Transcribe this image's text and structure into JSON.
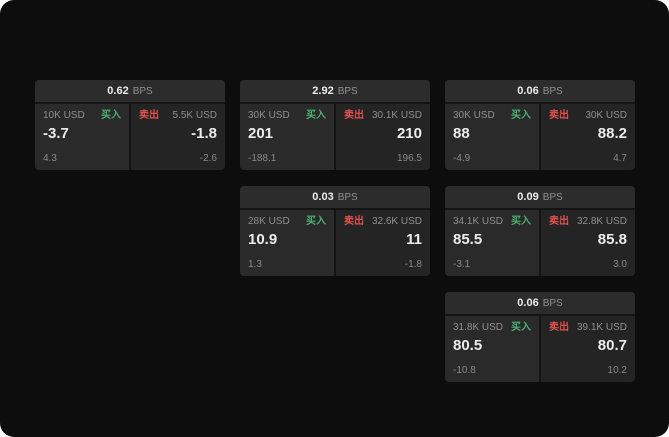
{
  "colors": {
    "buy": "#4caf6e",
    "sell": "#e0514e",
    "page_bg": "#0d0d0d",
    "header_bg": "#2c2c2c"
  },
  "labels": {
    "bps_unit": "BPS",
    "buy": "买入",
    "sell": "卖出"
  },
  "cards": [
    {
      "bps": "0.62",
      "buy_amount": "10K USD",
      "buy_value": "-3.7",
      "buy_delta": "4.3",
      "sell_amount": "5.5K USD",
      "sell_value": "-1.8",
      "sell_delta": "-2.6"
    },
    {
      "bps": "2.92",
      "buy_amount": "30K USD",
      "buy_value": "201",
      "buy_delta": "-188.1",
      "sell_amount": "30.1K USD",
      "sell_value": "210",
      "sell_delta": "196.5"
    },
    {
      "bps": "0.06",
      "buy_amount": "30K USD",
      "buy_value": "88",
      "buy_delta": "-4.9",
      "sell_amount": "30K USD",
      "sell_value": "88.2",
      "sell_delta": "4.7"
    },
    {
      "bps": "0.03",
      "buy_amount": "28K USD",
      "buy_value": "10.9",
      "buy_delta": "1.3",
      "sell_amount": "32.6K USD",
      "sell_value": "11",
      "sell_delta": "-1.8"
    },
    {
      "bps": "0.09",
      "buy_amount": "34.1K USD",
      "buy_value": "85.5",
      "buy_delta": "-3.1",
      "sell_amount": "32.8K USD",
      "sell_value": "85.8",
      "sell_delta": "3.0"
    },
    {
      "bps": "0.06",
      "buy_amount": "31.8K USD",
      "buy_value": "80.5",
      "buy_delta": "-10.8",
      "sell_amount": "39.1K USD",
      "sell_value": "80.7",
      "sell_delta": "10.2"
    }
  ]
}
